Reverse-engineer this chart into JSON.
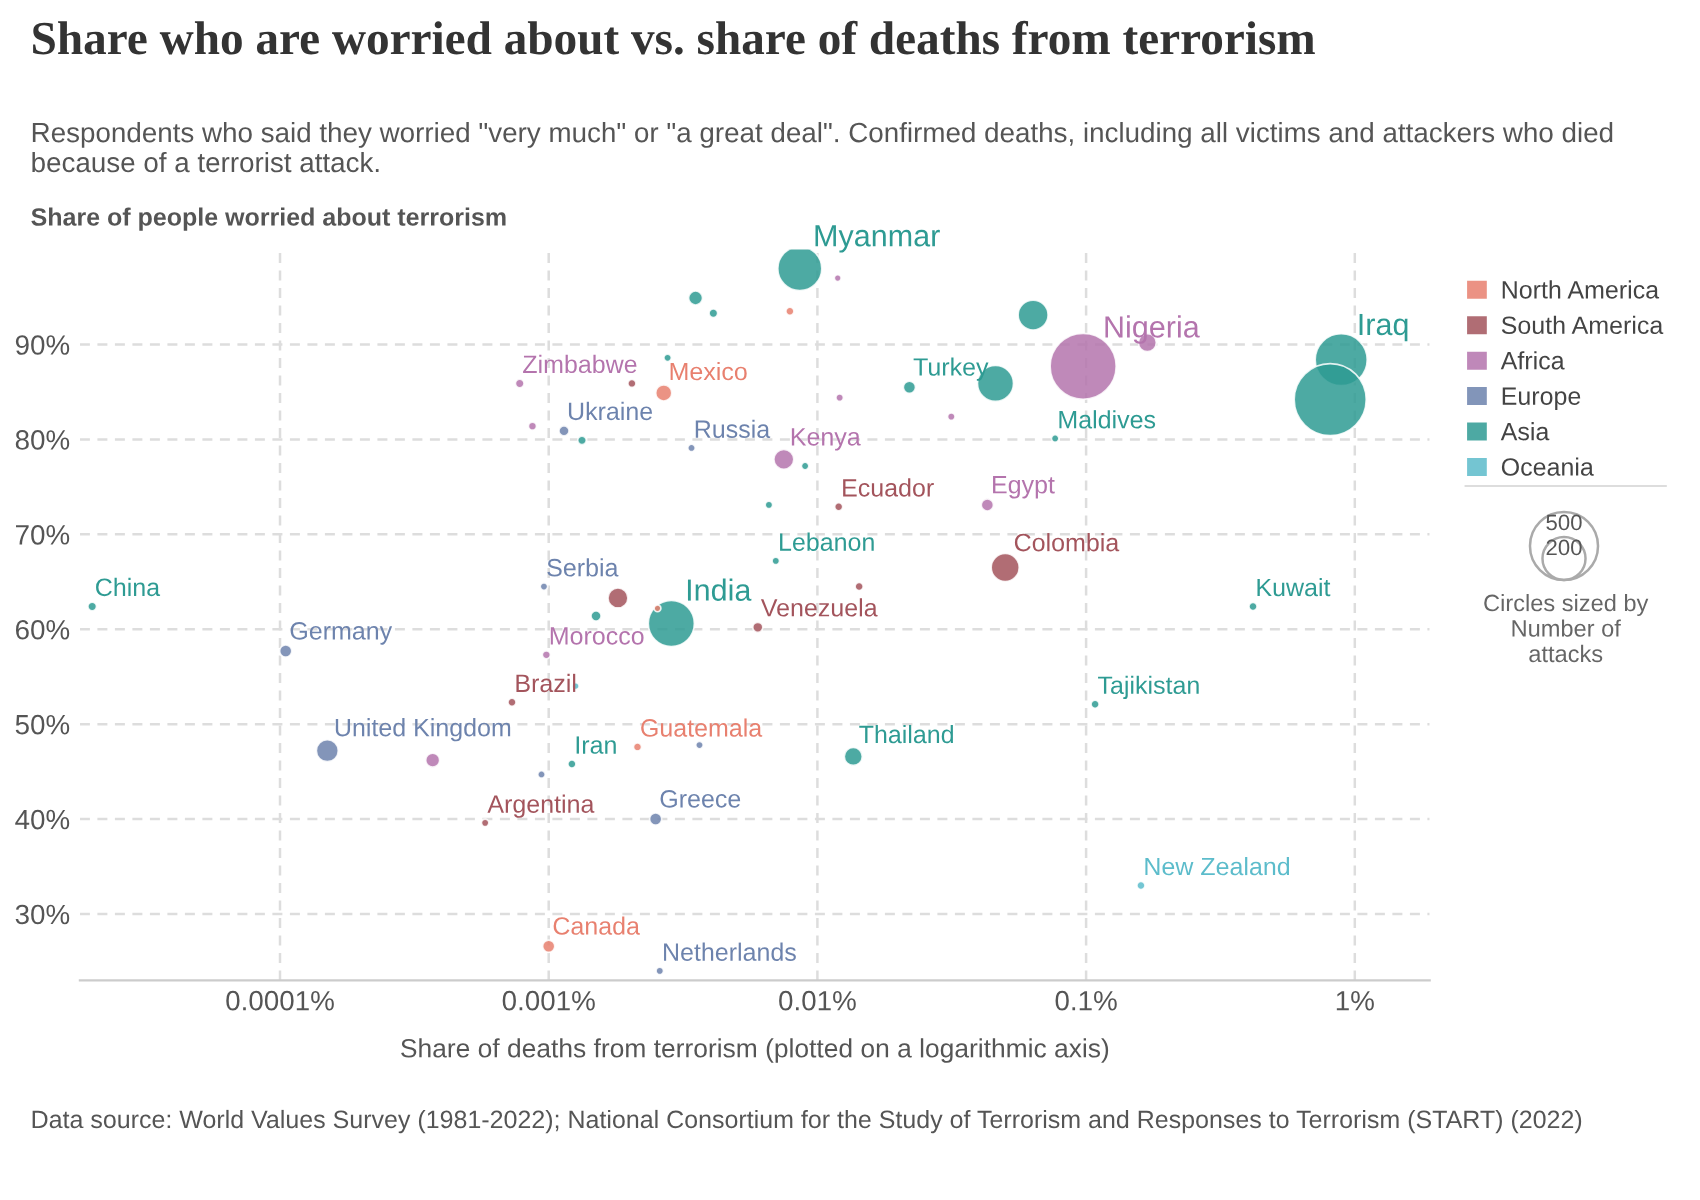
{
  "chart_data": {
    "type": "bubble",
    "title": "Share who are worried about vs. share of deaths from terrorism",
    "subtitle": "Respondents who said they worried \"very much\" or \"a great deal\". Confirmed deaths, including all victims and attackers who died because of a terrorist attack.",
    "xlabel": "Share of deaths from terrorism (plotted on a logarithmic axis)",
    "ylabel": "Share of people worried about terrorism",
    "log": "x",
    "grid": true,
    "legend": "right",
    "xlim": [
      1.8e-05,
      1.9
    ],
    "xticks": [
      {
        "value": 0.0001,
        "label": "0.0001%"
      },
      {
        "value": 0.001,
        "label": "0.001%"
      },
      {
        "value": 0.01,
        "label": "0.01%"
      },
      {
        "value": 0.1,
        "label": "0.1%"
      },
      {
        "value": 1,
        "label": "1%"
      }
    ],
    "ylim": [
      23,
      100
    ],
    "yticks": [
      {
        "value": 30,
        "label": "30%"
      },
      {
        "value": 40,
        "label": "40%"
      },
      {
        "value": 50,
        "label": "50%"
      },
      {
        "value": 60,
        "label": "60%"
      },
      {
        "value": 70,
        "label": "70%"
      },
      {
        "value": 80,
        "label": "80%"
      },
      {
        "value": 90,
        "label": "90%"
      }
    ],
    "size_legend": [
      200,
      500
    ],
    "series": [
      {
        "name": "North America",
        "color": "#e8806f",
        "x": [
          0.00268,
          0.0079,
          0.00254,
          0.00214,
          0.001
        ],
        "values": [
          84.9,
          93.5,
          62.2,
          47.6,
          26.6
        ],
        "sizes": [
          28,
          7,
          5,
          7,
          16
        ]
      },
      {
        "name": "South America",
        "color": "#a3545c",
        "x": [
          0.00204,
          0.00181,
          0.006,
          0.012,
          0.05,
          0.0143,
          0.00073,
          0.00058
        ],
        "values": [
          85.9,
          63.3,
          60.2,
          72.9,
          66.5,
          64.5,
          52.3,
          39.6
        ],
        "sizes": [
          7,
          43,
          11,
          7,
          85,
          7,
          7,
          6
        ]
      },
      {
        "name": "Africa",
        "color": "#b474ad",
        "x": [
          0.00078,
          0.00087,
          0.00098,
          0.0119,
          0.0975,
          0.169,
          0.0121,
          0.0315,
          0.0075,
          0.0429,
          0.00037
        ],
        "values": [
          85.9,
          81.4,
          57.3,
          97.0,
          87.7,
          90.2,
          84.4,
          82.4,
          77.9,
          73.1,
          46.2
        ],
        "sizes": [
          8,
          7,
          7,
          5,
          471,
          35,
          6,
          6,
          43,
          16,
          21
        ]
      },
      {
        "name": "Europe",
        "color": "#6d83ad",
        "x": [
          0.00114,
          0.0034,
          0.00096,
          0.000105,
          0.00015,
          0.00094,
          0.00364,
          0.0025,
          0.00259
        ],
        "values": [
          80.9,
          79.1,
          64.5,
          57.7,
          47.2,
          44.7,
          47.8,
          40.0,
          24.0
        ],
        "sizes": [
          11,
          6,
          6,
          16,
          52,
          6,
          6,
          16,
          6
        ]
      },
      {
        "name": "Asia",
        "color": "#2e9b93",
        "x": [
          0.00352,
          0.0041,
          0.00277,
          0.00133,
          2e-05,
          0.0015,
          0.00286,
          0.0086,
          0.0635,
          0.89,
          0.81,
          0.022,
          0.046,
          0.0767,
          0.009,
          0.0066,
          0.007,
          0.418,
          0.00122,
          0.108,
          0.0136
        ],
        "values": [
          94.9,
          93.3,
          88.6,
          79.9,
          62.4,
          61.4,
          60.6,
          98.0,
          93.1,
          88.4,
          84.2,
          85.5,
          85.9,
          80.1,
          77.2,
          73.1,
          67.2,
          62.4,
          45.8,
          52.1,
          46.6
        ],
        "sizes": [
          21,
          8,
          6,
          8,
          8,
          11,
          229,
          209,
          97,
          292,
          560,
          16,
          140,
          6,
          6,
          6,
          6,
          7,
          7,
          7,
          35
        ]
      },
      {
        "name": "Oceania",
        "color": "#5cbccb",
        "x": [
          0.00126,
          0.16
        ],
        "values": [
          54.0,
          33.0
        ],
        "sizes": [
          5,
          7
        ]
      }
    ],
    "annotations": [
      "Circles sized by\nNumber of\nattacks",
      {
        "text": "Zimbabwe",
        "x": 0.00078,
        "y": 85.9
      },
      {
        "text": "Mexico",
        "x": 0.00268,
        "y": 84.9
      },
      {
        "text": "Ukraine",
        "x": 0.00114,
        "y": 80.9
      },
      {
        "text": "Russia",
        "x": 0.0034,
        "y": 79.1
      },
      {
        "text": "China",
        "x": 2e-05,
        "y": 62.4
      },
      {
        "text": "Serbia",
        "x": 0.00096,
        "y": 64.5
      },
      {
        "text": "India",
        "x": 0.00286,
        "y": 60.6
      },
      {
        "text": "Germany",
        "x": 0.000105,
        "y": 57.7
      },
      {
        "text": "Morocco",
        "x": 0.00098,
        "y": 57.3
      },
      {
        "text": "Myanmar",
        "x": 0.0086,
        "y": 98.0
      },
      {
        "text": "Nigeria",
        "x": 0.0975,
        "y": 87.7
      },
      {
        "text": "Iraq",
        "x": 0.89,
        "y": 88.4
      },
      {
        "text": "Turkey",
        "x": 0.022,
        "y": 85.5
      },
      {
        "text": "Maldives",
        "x": 0.0767,
        "y": 80.1
      },
      {
        "text": "Kenya",
        "x": 0.0075,
        "y": 77.9
      },
      {
        "text": "Ecuador",
        "x": 0.012,
        "y": 72.9
      },
      {
        "text": "Egypt",
        "x": 0.0429,
        "y": 73.1
      },
      {
        "text": "Lebanon",
        "x": 0.007,
        "y": 67.2
      },
      {
        "text": "Colombia",
        "x": 0.05,
        "y": 66.5
      },
      {
        "text": "Venezuela",
        "x": 0.006,
        "y": 60.2
      },
      {
        "text": "Kuwait",
        "x": 0.418,
        "y": 62.4
      },
      {
        "text": "Brazil",
        "x": 0.00073,
        "y": 52.3
      },
      {
        "text": "United Kingdom",
        "x": 0.00015,
        "y": 47.2
      },
      {
        "text": "Iran",
        "x": 0.00122,
        "y": 45.8
      },
      {
        "text": "Guatemala",
        "x": 0.00214,
        "y": 47.6
      },
      {
        "text": "Argentina",
        "x": 0.00058,
        "y": 39.6
      },
      {
        "text": "Greece",
        "x": 0.0025,
        "y": 40.0
      },
      {
        "text": "Canada",
        "x": 0.001,
        "y": 26.6
      },
      {
        "text": "Netherlands",
        "x": 0.00259,
        "y": 24.0
      },
      {
        "text": "Tajikistan",
        "x": 0.108,
        "y": 52.1
      },
      {
        "text": "Thailand",
        "x": 0.0136,
        "y": 46.6
      },
      {
        "text": "New Zealand",
        "x": 0.16,
        "y": 33.0
      },
      "Data source: World Values Survey (1981-2022); National Consortium for the Study of Terrorism and Responses to Terrorism (START) (2022)"
    ]
  }
}
